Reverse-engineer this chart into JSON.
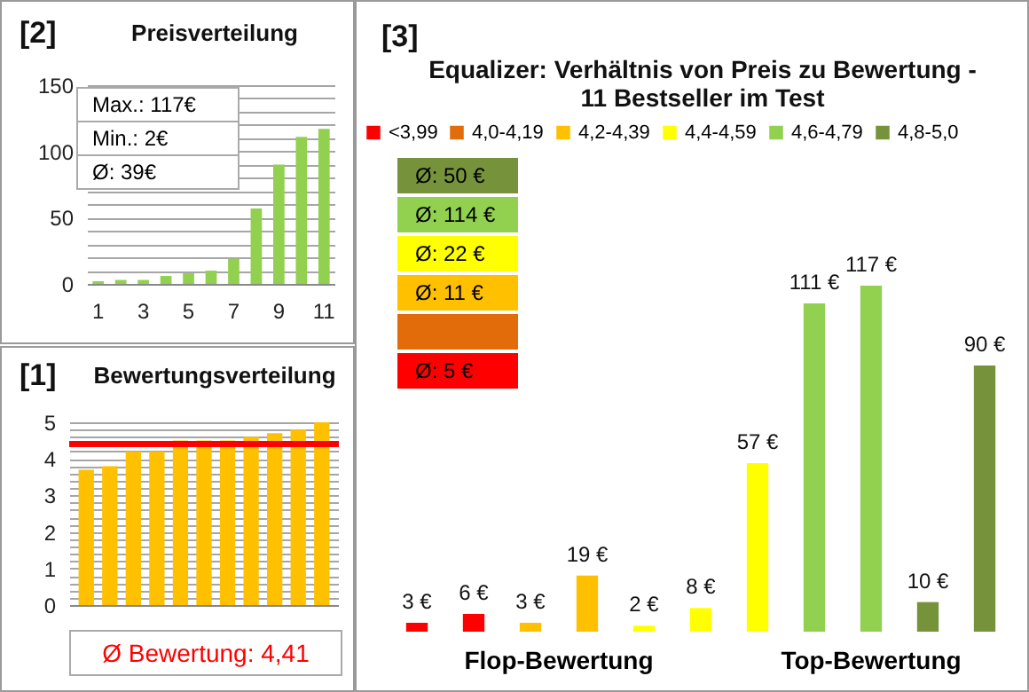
{
  "chart_data": [
    {
      "type": "bar",
      "title": "Preisverteilung",
      "categories": [
        "1",
        null,
        "3",
        null,
        "5",
        null,
        "7",
        null,
        "9",
        null,
        "11"
      ],
      "values": [
        2,
        3,
        3,
        6,
        8,
        10,
        19,
        57,
        90,
        111,
        117
      ],
      "color": "#92d050",
      "ylim": [
        0,
        150
      ],
      "yticks": [
        0,
        {
          "value": 10,
          "label": null
        },
        {
          "value": 20,
          "label": null
        },
        {
          "value": 30,
          "label": null
        },
        {
          "value": 40,
          "label": null
        },
        50,
        {
          "value": 60,
          "label": null
        },
        {
          "value": 70,
          "label": null
        },
        {
          "value": 80,
          "label": null
        },
        {
          "value": 90,
          "label": null
        },
        100,
        {
          "value": 110,
          "label": null
        },
        {
          "value": 120,
          "label": null
        },
        {
          "value": 130,
          "label": null
        },
        {
          "value": 140,
          "label": null
        },
        150
      ],
      "grid": "y",
      "annotations": [
        "[2]",
        "Max.: 117€",
        "Min.: 2€",
        "Ø: 39€"
      ]
    },
    {
      "type": "bar",
      "title": "Bewertungsverteilung",
      "categories": [
        null,
        null,
        null,
        null,
        null,
        null,
        null,
        null,
        null,
        null,
        null
      ],
      "values": [
        3.7,
        3.8,
        4.2,
        4.2,
        4.5,
        4.5,
        4.5,
        4.6,
        4.7,
        4.8,
        5.0
      ],
      "color": "#ffc000",
      "ylim": [
        0,
        5
      ],
      "yticks": [
        0,
        {
          "value": 0.2,
          "label": null
        },
        {
          "value": 0.4,
          "label": null
        },
        {
          "value": 0.6,
          "label": null
        },
        {
          "value": 0.8,
          "label": null
        },
        1,
        {
          "value": 1.2,
          "label": null
        },
        {
          "value": 1.4,
          "label": null
        },
        {
          "value": 1.6,
          "label": null
        },
        {
          "value": 1.8,
          "label": null
        },
        2,
        {
          "value": 2.2,
          "label": null
        },
        {
          "value": 2.4,
          "label": null
        },
        {
          "value": 2.6,
          "label": null
        },
        {
          "value": 2.8,
          "label": null
        },
        3,
        {
          "value": 3.2,
          "label": null
        },
        {
          "value": 3.4,
          "label": null
        },
        {
          "value": 3.6,
          "label": null
        },
        {
          "value": 3.8,
          "label": null
        },
        4,
        {
          "value": 4.2,
          "label": null
        },
        {
          "value": 4.4,
          "label": null
        },
        {
          "value": 4.6,
          "label": null
        },
        {
          "value": 4.8,
          "label": null
        },
        5
      ],
      "grid": "y",
      "tick_labels": "y",
      "ref_lines": [
        {
          "axis": "y",
          "value": 4.41,
          "label": "Ø Bewertung: 4,41",
          "color": "#ff0000"
        }
      ],
      "annotations": [
        "[1]"
      ]
    },
    {
      "type": "bar",
      "title": "Equalizer: Verhältnis von Preis zu Bewertung - 11 Bestseller im Test",
      "categories": [
        null,
        null,
        null,
        null,
        null,
        null,
        null,
        null,
        null,
        null,
        null
      ],
      "tick_labels": false,
      "legend": "top",
      "stacked": true,
      "data_labels": true,
      "series": [
        {
          "name": "<3,99",
          "color": "#ff0000",
          "values": [
            3,
            6,
            null,
            null,
            null,
            null,
            null,
            null,
            null,
            null,
            null
          ],
          "value_labels": [
            "3 €",
            "6 €",
            null,
            null,
            null,
            null,
            null,
            null,
            null,
            null,
            null
          ]
        },
        {
          "name": "4,0-4,19",
          "color": "#e26b0a",
          "values": [
            null,
            null,
            null,
            null,
            null,
            null,
            null,
            null,
            null,
            null,
            null
          ],
          "value_labels": [
            null,
            null,
            null,
            null,
            null,
            null,
            null,
            null,
            null,
            null,
            null
          ]
        },
        {
          "name": "4,2-4,39",
          "color": "#ffc000",
          "values": [
            null,
            null,
            3,
            19,
            null,
            null,
            null,
            null,
            null,
            null,
            null
          ],
          "value_labels": [
            null,
            null,
            "3 €",
            "19 €",
            null,
            null,
            null,
            null,
            null,
            null,
            null
          ]
        },
        {
          "name": "4,4-4,59",
          "color": "#ffff00",
          "values": [
            null,
            null,
            null,
            null,
            2,
            8,
            57,
            null,
            null,
            null,
            null
          ],
          "value_labels": [
            null,
            null,
            null,
            null,
            "2 €",
            "8 €",
            "57 €",
            null,
            null,
            null,
            null
          ]
        },
        {
          "name": "4,6-4,79",
          "color": "#92d050",
          "values": [
            null,
            null,
            null,
            null,
            null,
            null,
            null,
            111,
            117,
            null,
            null
          ],
          "value_labels": [
            null,
            null,
            null,
            null,
            null,
            null,
            null,
            "111 €",
            "117 €",
            null,
            null
          ]
        },
        {
          "name": "4,8-5,0",
          "color": "#76933c",
          "values": [
            null,
            null,
            null,
            null,
            null,
            null,
            null,
            null,
            null,
            10,
            90
          ],
          "value_labels": [
            null,
            null,
            null,
            null,
            null,
            null,
            null,
            null,
            null,
            "10 €",
            "90 €"
          ]
        }
      ],
      "annotations": [
        "[3]",
        "Flop-Bewertung",
        "Top-Bewertung",
        "Ø: 50 €",
        "Ø: 114 €",
        "Ø: 22 €",
        "Ø: 11 €",
        "Ø: 5 €"
      ]
    }
  ]
}
